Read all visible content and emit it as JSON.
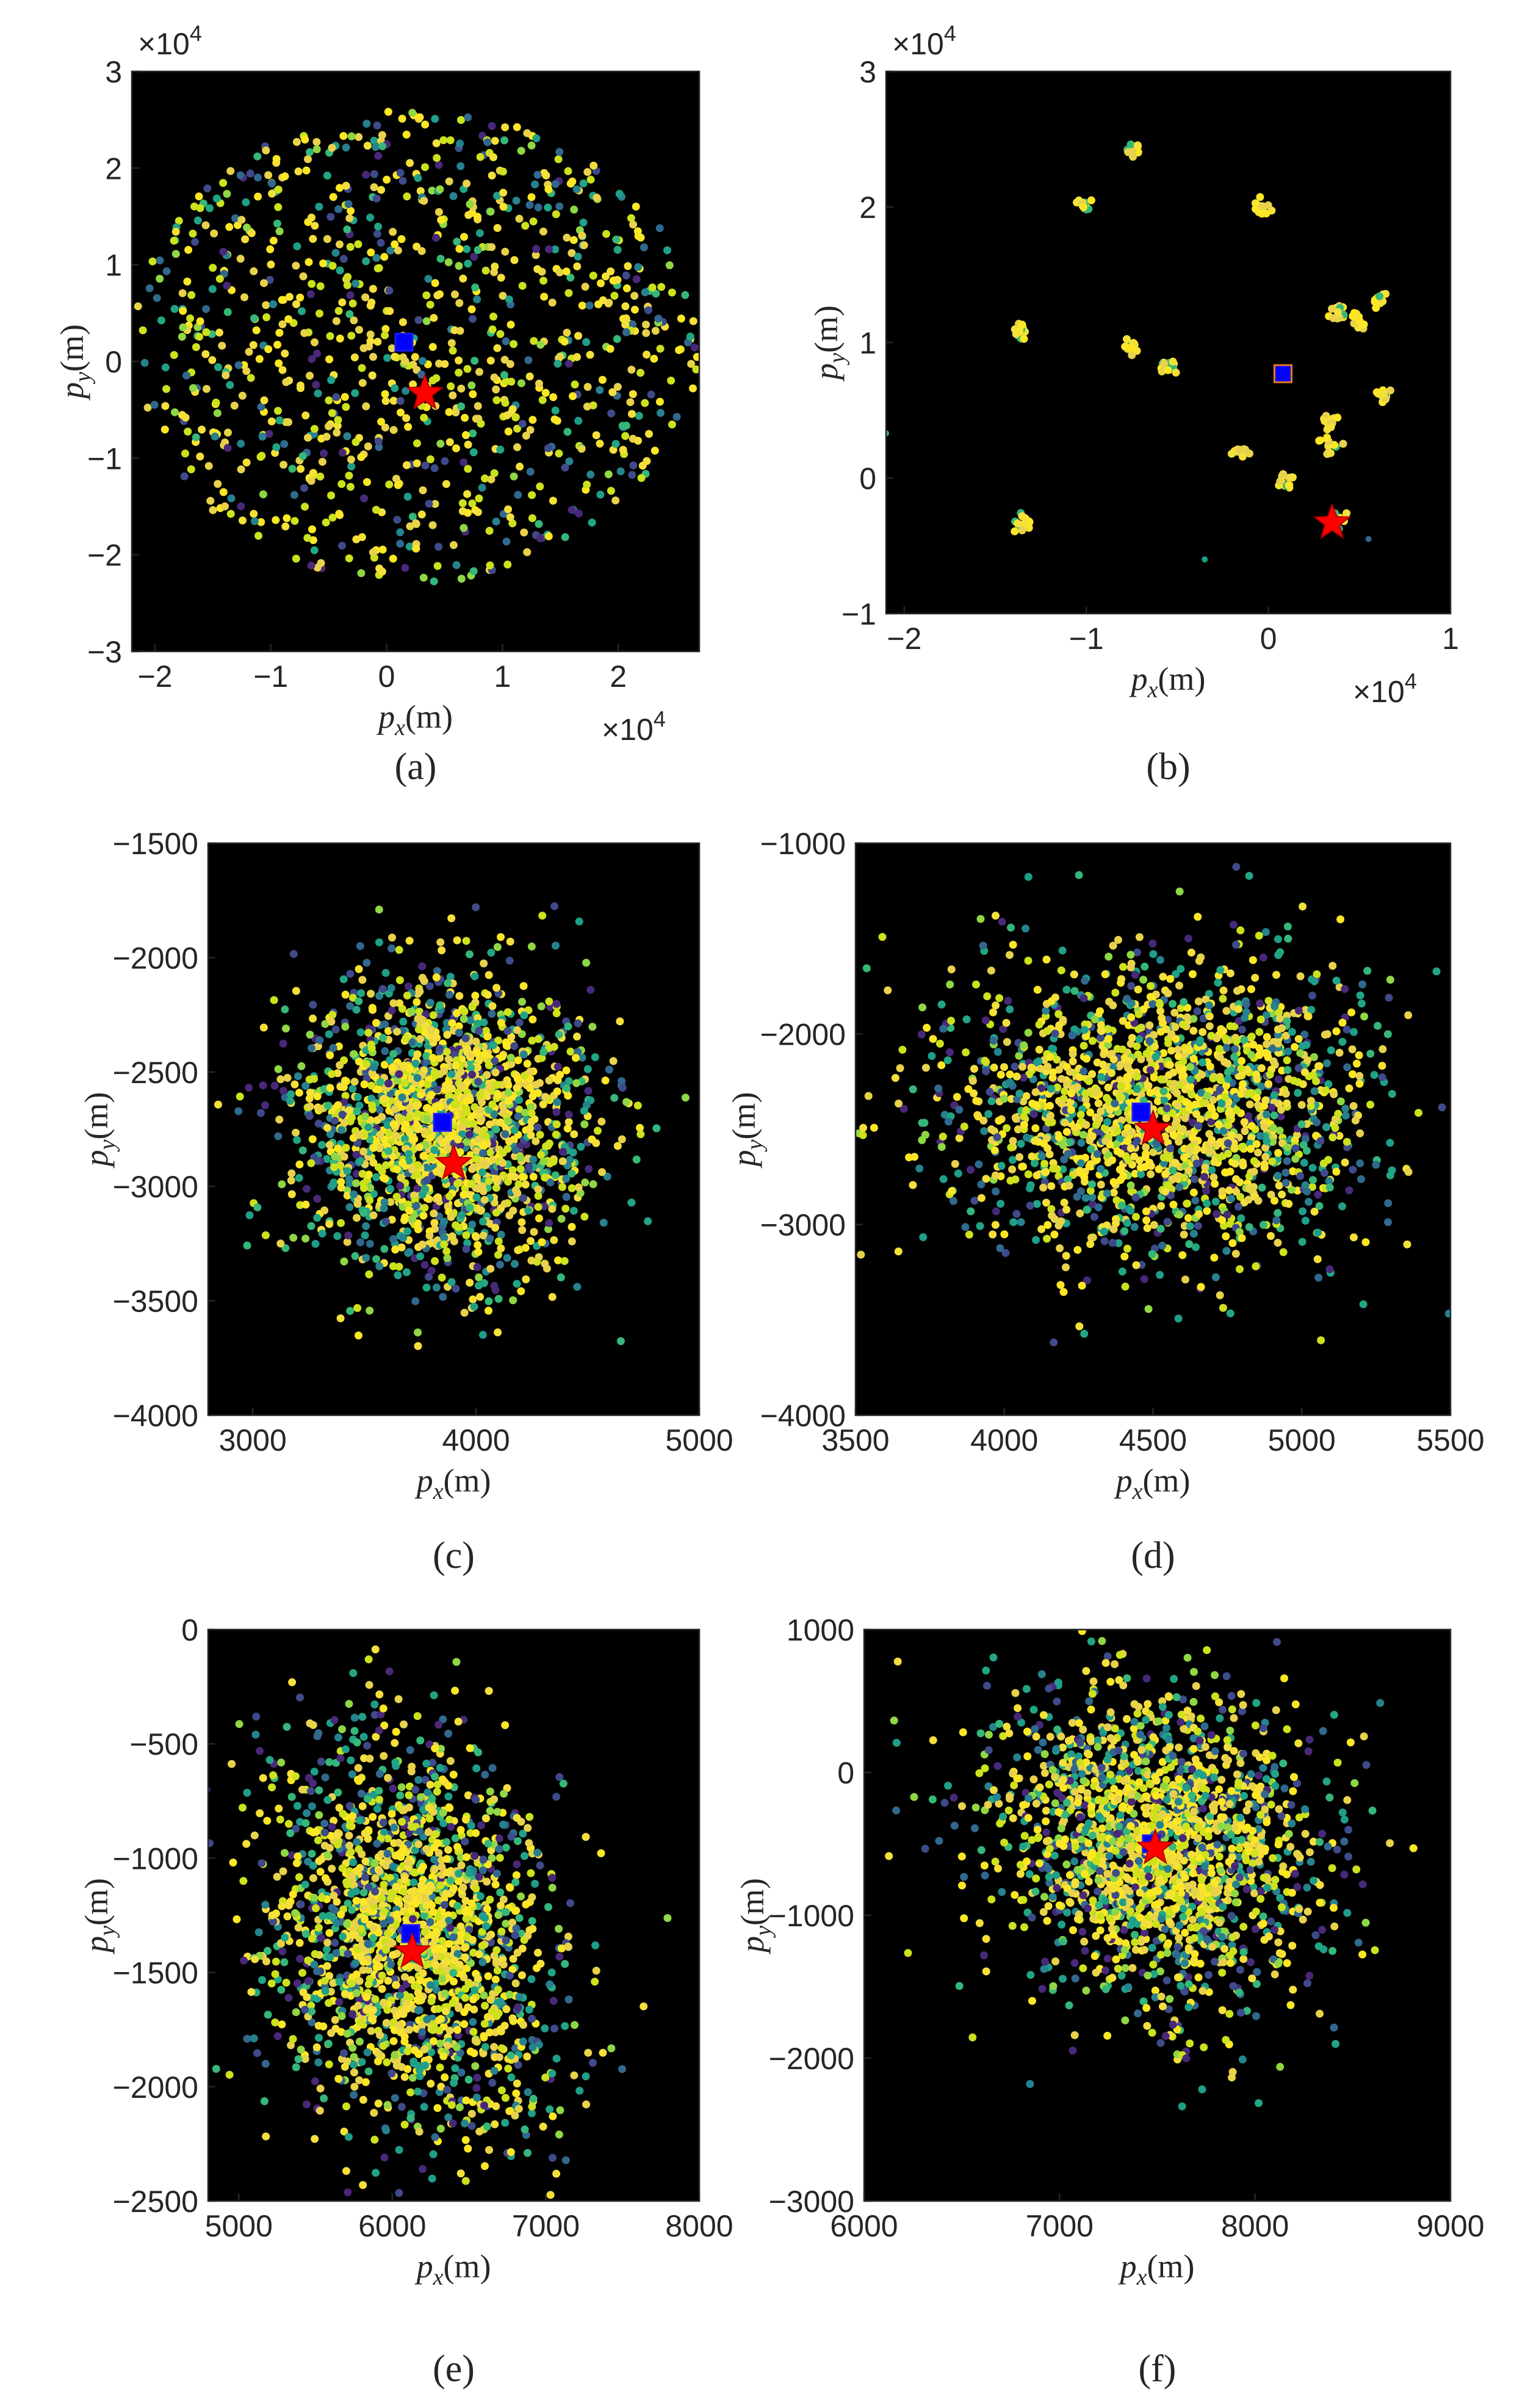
{
  "colors": {
    "background": "#000000",
    "estimate_marker": "#0000ff",
    "truth_marker": "#ff0000",
    "particle_palette": [
      "#fde725",
      "#f5e03a",
      "#e8d24a",
      "#cde11d",
      "#8fd744",
      "#35b779",
      "#21a585",
      "#1f9e89",
      "#26828e",
      "#31688e",
      "#3e4a89",
      "#482878"
    ]
  },
  "chart_data": [
    {
      "type": "scatter",
      "panel": "(a)",
      "xlabel_main": "p",
      "xlabel_sub": "x",
      "xlabel_unit": "(m)",
      "ylabel_main": "p",
      "ylabel_sub": "y",
      "ylabel_unit": "(m)",
      "xlim": [
        -2.2,
        2.7
      ],
      "ylim": [
        -3,
        3
      ],
      "xticks": [
        -2,
        -1,
        0,
        1,
        2
      ],
      "yticks": [
        -3,
        -2,
        -1,
        0,
        1,
        2,
        3
      ],
      "xtick_labels": [
        "−2",
        "−1",
        "0",
        "1",
        "2"
      ],
      "ytick_labels": [
        "−3",
        "−2",
        "−1",
        "0",
        "1",
        "2",
        "3"
      ],
      "x_exponent_base": "×10",
      "x_exponent_power": "4",
      "y_exponent_base": "×10",
      "y_exponent_power": "4",
      "particles": {
        "distribution": "disk",
        "center": [
          0.25,
          0.15
        ],
        "radius": [
          2.45,
          2.45
        ],
        "count": 1000
      },
      "estimate": [
        0.15,
        0.2
      ],
      "truth": [
        0.33,
        -0.33
      ]
    },
    {
      "type": "scatter",
      "panel": "(b)",
      "xlabel_main": "p",
      "xlabel_sub": "x",
      "xlabel_unit": "(m)",
      "ylabel_main": "p",
      "ylabel_sub": "y",
      "ylabel_unit": "(m)",
      "xlim": [
        -2.1,
        1
      ],
      "ylim": [
        -1,
        3
      ],
      "xticks": [
        -2,
        -1,
        0,
        1
      ],
      "yticks": [
        -1,
        0,
        1,
        2,
        3
      ],
      "xtick_labels": [
        "−2",
        "−1",
        "0",
        "1"
      ],
      "ytick_labels": [
        "−1",
        "0",
        "1",
        "2",
        "3"
      ],
      "x_exponent_base": "×10",
      "x_exponent_power": "4",
      "y_exponent_base": "×10",
      "y_exponent_power": "4",
      "particles": {
        "distribution": "clusters",
        "count_per_cluster": 14,
        "clusters": [
          [
            -0.75,
            2.43
          ],
          [
            -1.02,
            2.0
          ],
          [
            -0.03,
            1.98
          ],
          [
            -1.37,
            1.1
          ],
          [
            -0.75,
            0.97
          ],
          [
            -0.55,
            0.83
          ],
          [
            0.38,
            1.22
          ],
          [
            0.5,
            1.15
          ],
          [
            0.6,
            1.32
          ],
          [
            0.62,
            0.63
          ],
          [
            0.33,
            0.4
          ],
          [
            0.33,
            0.24
          ],
          [
            -0.15,
            0.19
          ],
          [
            0.1,
            -0.03
          ],
          [
            -1.35,
            -0.32
          ],
          [
            0.38,
            -0.3
          ]
        ],
        "singletons": [
          [
            -2.1,
            0.33
          ],
          [
            -0.35,
            -0.6
          ],
          [
            0.55,
            -0.45
          ]
        ]
      },
      "estimate": [
        0.08,
        0.77
      ],
      "truth": [
        0.35,
        -0.33
      ]
    },
    {
      "type": "scatter",
      "panel": "(c)",
      "xlabel_main": "p",
      "xlabel_sub": "x",
      "xlabel_unit": "(m)",
      "ylabel_main": "p",
      "ylabel_sub": "y",
      "ylabel_unit": "(m)",
      "xlim": [
        2800,
        5000
      ],
      "ylim": [
        -4000,
        -1500
      ],
      "xticks": [
        3000,
        4000,
        5000
      ],
      "yticks": [
        -4000,
        -3500,
        -3000,
        -2500,
        -2000,
        -1500
      ],
      "xtick_labels": [
        "3000",
        "4000",
        "5000"
      ],
      "ytick_labels": [
        "−4000",
        "−3500",
        "−3000",
        "−2500",
        "−2000",
        "−1500"
      ],
      "particles": {
        "distribution": "gaussian",
        "center": [
          3860,
          -2720
        ],
        "sigma": [
          330,
          310
        ],
        "count": 1900
      },
      "estimate": [
        3850,
        -2720
      ],
      "truth": [
        3900,
        -2900
      ]
    },
    {
      "type": "scatter",
      "panel": "(d)",
      "xlabel_main": "p",
      "xlabel_sub": "x",
      "xlabel_unit": "(m)",
      "ylabel_main": "p",
      "ylabel_sub": "y",
      "ylabel_unit": "(m)",
      "xlim": [
        3500,
        5500
      ],
      "ylim": [
        -4000,
        -1000
      ],
      "xticks": [
        3500,
        4000,
        4500,
        5000,
        5500
      ],
      "yticks": [
        -4000,
        -3000,
        -2000,
        -1000
      ],
      "xtick_labels": [
        "3500",
        "4000",
        "4500",
        "5000",
        "5500"
      ],
      "ytick_labels": [
        "−4000",
        "−3000",
        "−2000",
        "−1000"
      ],
      "particles": {
        "distribution": "gaussian",
        "center": [
          4520,
          -2380
        ],
        "sigma": [
          360,
          380
        ],
        "count": 1900
      },
      "estimate": [
        4460,
        -2410
      ],
      "truth": [
        4500,
        -2500
      ]
    },
    {
      "type": "scatter",
      "panel": "(e)",
      "xlabel_main": "p",
      "xlabel_sub": "x",
      "xlabel_unit": "(m)",
      "ylabel_main": "p",
      "ylabel_sub": "y",
      "ylabel_unit": "(m)",
      "xlim": [
        4800,
        8000
      ],
      "ylim": [
        -2500,
        0
      ],
      "xticks": [
        5000,
        6000,
        7000,
        8000
      ],
      "yticks": [
        -2500,
        -2000,
        -1500,
        -1000,
        -500,
        0
      ],
      "xtick_labels": [
        "5000",
        "6000",
        "7000",
        "8000"
      ],
      "ytick_labels": [
        "−2500",
        "−2000",
        "−1500",
        "−1000",
        "−500",
        "0"
      ],
      "particles": {
        "distribution": "gaussian",
        "center": [
          6130,
          -1330
        ],
        "sigma": [
          520,
          430
        ],
        "rotation": -0.55,
        "count": 1900
      },
      "estimate": [
        6120,
        -1330
      ],
      "truth": [
        6130,
        -1410
      ]
    },
    {
      "type": "scatter",
      "panel": "(f)",
      "xlabel_main": "p",
      "xlabel_sub": "x",
      "xlabel_unit": "(m)",
      "ylabel_main": "p",
      "ylabel_sub": "y",
      "ylabel_unit": "(m)",
      "xlim": [
        6000,
        9000
      ],
      "ylim": [
        -3000,
        1000
      ],
      "xticks": [
        6000,
        7000,
        8000,
        9000
      ],
      "yticks": [
        -3000,
        -2000,
        -1000,
        0,
        1000
      ],
      "xtick_labels": [
        "6000",
        "7000",
        "8000",
        "9000"
      ],
      "ytick_labels": [
        "−3000",
        "−2000",
        "−1000",
        "0",
        "1000"
      ],
      "particles": {
        "distribution": "gaussian",
        "center": [
          7500,
          -520
        ],
        "sigma": [
          440,
          560
        ],
        "rotation": -0.5,
        "count": 1900
      },
      "estimate": [
        7470,
        -500
      ],
      "truth": [
        7490,
        -530
      ]
    }
  ]
}
